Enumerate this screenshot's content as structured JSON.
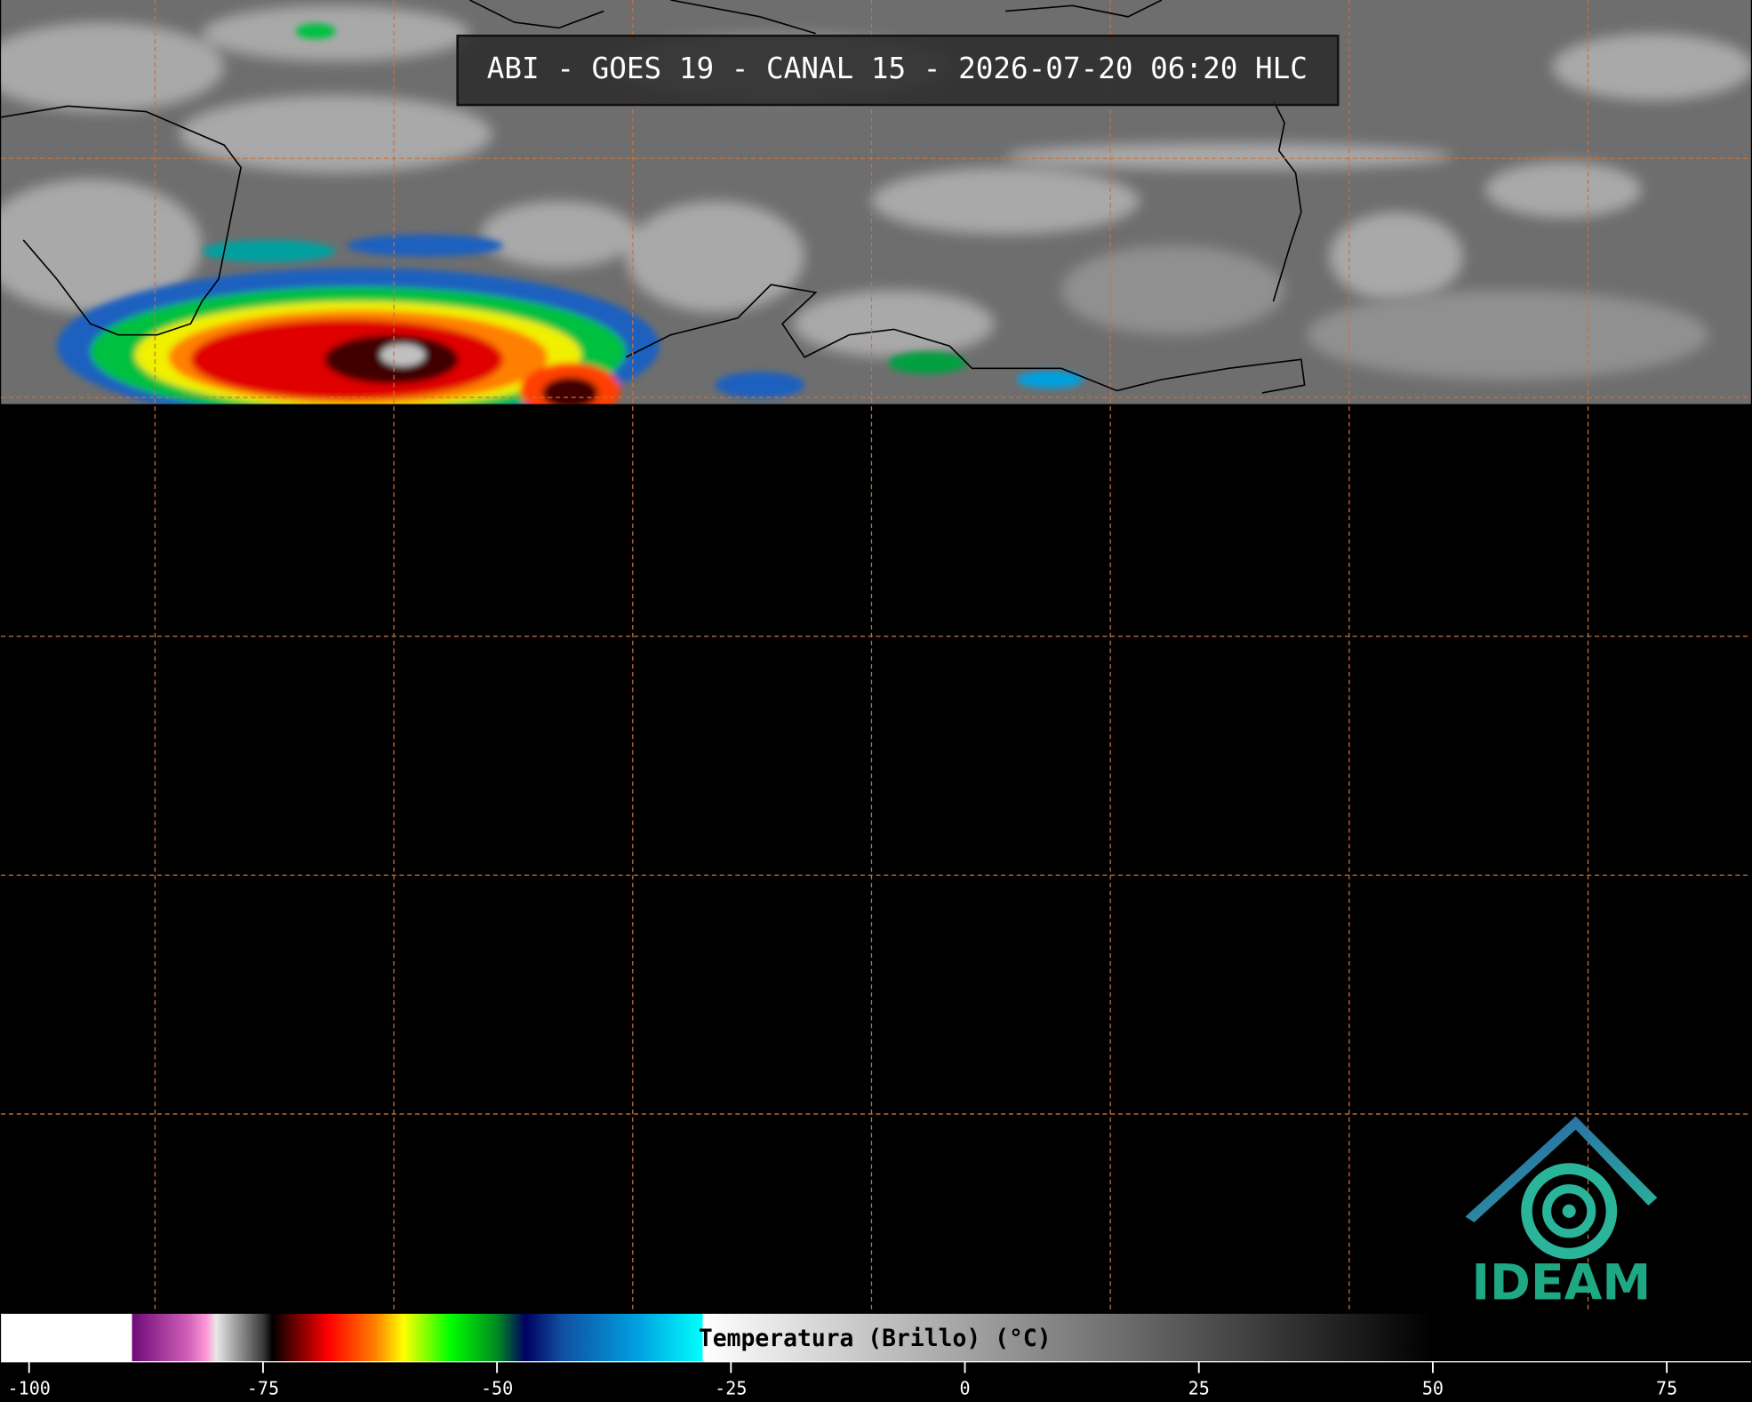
{
  "title": "ABI - GOES 19 - CANAL 15 - 2026-07-20 06:20 HLC",
  "logo_text": "IDEAM",
  "colorbar": {
    "label": "Temperatura (Brillo) (°C)",
    "xlim": [
      -103,
      84
    ],
    "ticks": [
      -100,
      -75,
      -50,
      -25,
      0,
      25,
      50,
      75
    ],
    "stops": [
      {
        "value": -103,
        "color": "#ffffff"
      },
      {
        "value": -89,
        "color": "#ffffff"
      },
      {
        "value": -89,
        "color": "#6e0a78"
      },
      {
        "value": -83,
        "color": "#d060b8"
      },
      {
        "value": -81,
        "color": "#ff9ad8"
      },
      {
        "value": -80,
        "color": "#e8e8e8"
      },
      {
        "value": -75,
        "color": "#3a3a3a"
      },
      {
        "value": -74,
        "color": "#000000"
      },
      {
        "value": -72,
        "color": "#5a0000"
      },
      {
        "value": -68,
        "color": "#ff0000"
      },
      {
        "value": -63,
        "color": "#ff8000"
      },
      {
        "value": -60,
        "color": "#ffff00"
      },
      {
        "value": -55,
        "color": "#00ff00"
      },
      {
        "value": -50,
        "color": "#008a20"
      },
      {
        "value": -47,
        "color": "#000060"
      },
      {
        "value": -43,
        "color": "#1050a0"
      },
      {
        "value": -35,
        "color": "#00a0e0"
      },
      {
        "value": -28,
        "color": "#00ffff"
      },
      {
        "value": -28,
        "color": "#ffffff"
      },
      {
        "value": 50,
        "color": "#000000"
      },
      {
        "value": 84,
        "color": "#000000"
      }
    ]
  }
}
